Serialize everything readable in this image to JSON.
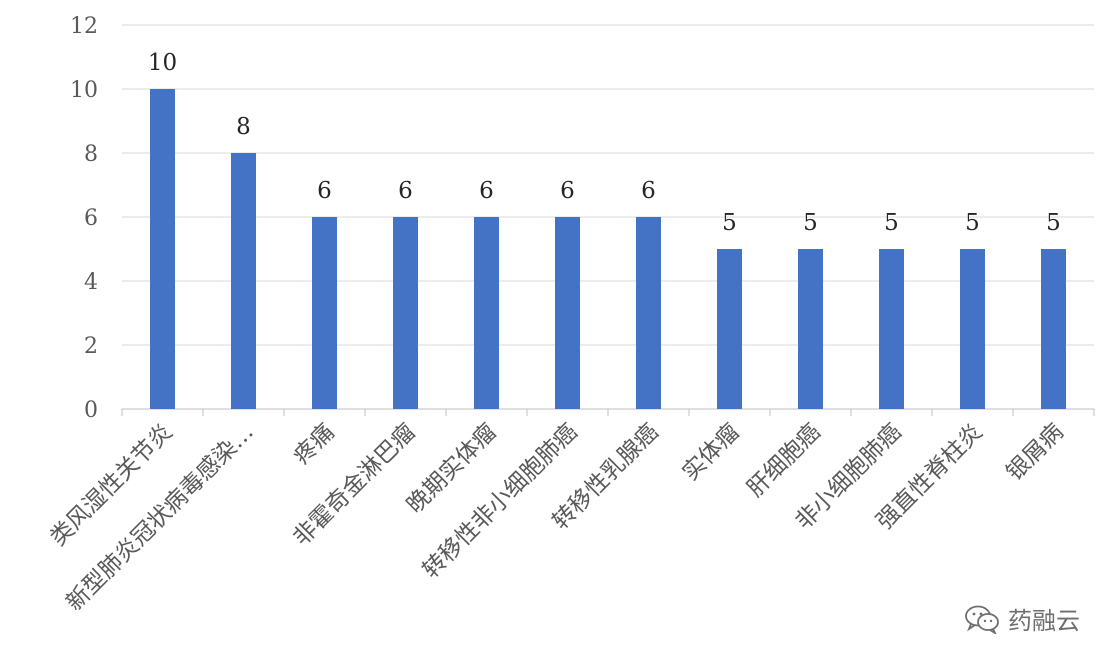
{
  "chart_data": {
    "type": "bar",
    "categories": [
      "类风湿性关节炎",
      "新型肺炎冠状病毒感染…",
      "疼痛",
      "非霍奇金淋巴瘤",
      "晚期实体瘤",
      "转移性非小细胞肺癌",
      "转移性乳腺癌",
      "实体瘤",
      "肝细胞癌",
      "非小细胞肺癌",
      "强直性脊柱炎",
      "银屑病"
    ],
    "values": [
      10,
      8,
      6,
      6,
      6,
      6,
      6,
      5,
      5,
      5,
      5,
      5
    ],
    "data_labels": [
      "10",
      "8",
      "6",
      "6",
      "6",
      "6",
      "6",
      "5",
      "5",
      "5",
      "5",
      "5"
    ],
    "y_ticks": [
      "0",
      "2",
      "4",
      "6",
      "8",
      "10",
      "12"
    ],
    "ylim": [
      0,
      12
    ],
    "grid": true,
    "bar_color": "#4472C4",
    "title": "",
    "xlabel": "",
    "ylabel": ""
  },
  "watermark": {
    "icon": "wechat-icon",
    "text": "药融云"
  }
}
